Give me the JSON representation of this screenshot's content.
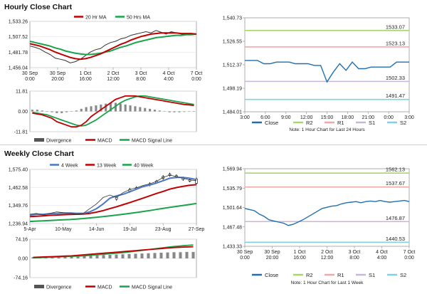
{
  "hourly": {
    "title": "Hourly Close Chart",
    "price_chart": {
      "type": "line",
      "legend": [
        {
          "name": "20 Hr MA",
          "color": "#c00000"
        },
        {
          "name": "50 Hrs MA",
          "color": "#1aa34a"
        }
      ],
      "y_ticks": [
        "1,533.26",
        "1,507.52",
        "1,481.78",
        "1,456.04"
      ],
      "ylim": [
        1456.04,
        1533.26
      ],
      "x_ticks": [
        [
          "30 Sep",
          "0:00"
        ],
        [
          "30 Sep",
          "20:00"
        ],
        [
          "1 Oct",
          "16:00"
        ],
        [
          "2 Oct",
          "12:00"
        ],
        [
          "3 Oct",
          "8:00"
        ],
        [
          "4 Oct",
          "4:00"
        ],
        [
          "7 Oct",
          "0:00"
        ]
      ],
      "price": [
        1492,
        1490,
        1487,
        1482,
        1478,
        1472,
        1470,
        1468,
        1464,
        1466,
        1470,
        1476,
        1482,
        1486,
        1488,
        1494,
        1498,
        1500,
        1504,
        1506,
        1510,
        1512,
        1514,
        1516,
        1514,
        1518,
        1515,
        1512,
        1516,
        1514,
        1512,
        1511,
        1513,
        1512
      ],
      "ma20": [
        1496,
        1494,
        1492,
        1489,
        1486,
        1482,
        1479,
        1476,
        1473,
        1471,
        1470,
        1471,
        1473,
        1476,
        1479,
        1483,
        1487,
        1491,
        1495,
        1498,
        1502,
        1505,
        1508,
        1510,
        1512,
        1513,
        1514,
        1514,
        1514,
        1514,
        1513,
        1513,
        1513,
        1512
      ],
      "ma50": [
        1500,
        1498,
        1496,
        1494,
        1492,
        1489,
        1487,
        1484,
        1482,
        1480,
        1479,
        1478,
        1478,
        1479,
        1480,
        1482,
        1484,
        1487,
        1490,
        1492,
        1495,
        1498,
        1500,
        1502,
        1504,
        1506,
        1507,
        1508,
        1509,
        1510,
        1510,
        1511,
        1511,
        1512
      ]
    },
    "macd_chart": {
      "type": "bar",
      "y_ticks": [
        "11.81",
        "0.00",
        "-11.81"
      ],
      "ylim": [
        -11.81,
        11.81
      ],
      "divergence": [
        1,
        1,
        0.5,
        0,
        -0.5,
        -1,
        -1,
        -0.5,
        0,
        0.5,
        1.5,
        2.5,
        3,
        3.5,
        4,
        4.5,
        5,
        5,
        4.5,
        4,
        3.5,
        3,
        2.5,
        2,
        1.5,
        1,
        0.5,
        0,
        -0.5,
        -0.5,
        -0.5,
        -0.3,
        -0.2,
        -0.1
      ],
      "macd": [
        -1,
        -1.5,
        -2,
        -3,
        -4,
        -6,
        -7,
        -8,
        -9,
        -9,
        -8,
        -6,
        -3,
        -1,
        1,
        3,
        5,
        7,
        8,
        9,
        9,
        9,
        8.5,
        8,
        7.5,
        7,
        6.5,
        6,
        5.5,
        5,
        4.5,
        4,
        3.8,
        3.5
      ],
      "signal": [
        -0.5,
        -1,
        -1.5,
        -2,
        -3,
        -4,
        -5,
        -6,
        -7,
        -8,
        -8.5,
        -8,
        -6.5,
        -5,
        -3,
        -1,
        1,
        3,
        5,
        6.5,
        7.5,
        8.5,
        9,
        9,
        8.5,
        8,
        7.5,
        7,
        6.5,
        6,
        5.5,
        5,
        4.5,
        4
      ],
      "legend": [
        {
          "name": "Divergence",
          "color": "#555555"
        },
        {
          "name": "MACD",
          "color": "#c00000"
        },
        {
          "name": "MACD Signal Line",
          "color": "#1aa34a"
        }
      ]
    },
    "pivot_chart": {
      "type": "line",
      "y_ticks": [
        "1,540.73",
        "1,526.55",
        "1,512.37",
        "1,498.19",
        "1,484.01"
      ],
      "ylim": [
        1484.01,
        1540.73
      ],
      "x_ticks": [
        "3:00",
        "6:00",
        "9:00",
        "12:00",
        "15:00",
        "18:00",
        "21:00",
        "0:00",
        "3:00"
      ],
      "close": [
        1515,
        1515,
        1515,
        1513,
        1513,
        1514,
        1514,
        1514,
        1513,
        1513,
        1513,
        1512,
        1512,
        1502,
        1508,
        1513,
        1509,
        1514,
        1510,
        1510,
        1511,
        1511,
        1511,
        1511,
        1514,
        1514,
        1514
      ],
      "levels": [
        {
          "name": "R2",
          "value": 1533.07,
          "label": "1533.07",
          "color": "#a8d66a"
        },
        {
          "name": "R1",
          "value": 1523.13,
          "label": "1523.13",
          "color": "#f2a7a7"
        },
        {
          "name": "S1",
          "value": 1502.33,
          "label": "1502.33",
          "color": "#c9b5d9"
        },
        {
          "name": "S2",
          "value": 1491.47,
          "label": "1491.47",
          "color": "#7fd3e0"
        }
      ],
      "legend": [
        {
          "name": "Close",
          "color": "#1f6fb0"
        },
        {
          "name": "R2",
          "color": "#a8d66a"
        },
        {
          "name": "R1",
          "color": "#f2a7a7"
        },
        {
          "name": "S1",
          "color": "#c9b5d9"
        },
        {
          "name": "S2",
          "color": "#7fd3e0"
        }
      ],
      "note": "Note: 1 Hour Chart for Last 24 Hours"
    }
  },
  "weekly": {
    "title": "Weekly Close Chart",
    "price_chart": {
      "type": "line",
      "legend": [
        {
          "name": "4 Week",
          "color": "#4a78c2"
        },
        {
          "name": "13 Week",
          "color": "#c00000"
        },
        {
          "name": "40 Week",
          "color": "#1aa34a"
        }
      ],
      "y_ticks": [
        "1,575.40",
        "1,462.58",
        "1,349.76",
        "1,236.94"
      ],
      "ylim": [
        1236.94,
        1575.4
      ],
      "x_ticks": [
        "5-Apr",
        "10-May",
        "14-Jun",
        "19-Jul",
        "23-Aug",
        "27-Sep"
      ],
      "price": [
        1295,
        1300,
        1290,
        1300,
        1310,
        1305,
        1302,
        1296,
        1300,
        1330,
        1360,
        1400,
        1415,
        1400,
        1430,
        1450,
        1460,
        1475,
        1485,
        1500,
        1525,
        1540,
        1530,
        1520,
        1510,
        1505
      ],
      "ma4": [
        1290,
        1295,
        1295,
        1298,
        1300,
        1302,
        1303,
        1301,
        1300,
        1310,
        1330,
        1360,
        1395,
        1410,
        1420,
        1435,
        1452,
        1468,
        1478,
        1490,
        1505,
        1520,
        1525,
        1525,
        1520,
        1512
      ],
      "ma13": [
        1280,
        1283,
        1285,
        1288,
        1290,
        1292,
        1294,
        1295,
        1296,
        1300,
        1308,
        1318,
        1330,
        1342,
        1355,
        1368,
        1382,
        1396,
        1410,
        1425,
        1438,
        1452,
        1462,
        1470,
        1476,
        1480
      ],
      "ma40": [
        1250,
        1252,
        1254,
        1256,
        1258,
        1260,
        1262,
        1265,
        1268,
        1272,
        1276,
        1280,
        1285,
        1290,
        1295,
        1300,
        1306,
        1312,
        1318,
        1325,
        1332,
        1338,
        1344,
        1350,
        1356,
        1362
      ],
      "candles": [
        {
          "i": 13,
          "lo": 1380,
          "hi": 1410
        },
        {
          "i": 15,
          "lo": 1430,
          "hi": 1460
        },
        {
          "i": 16,
          "lo": 1455,
          "hi": 1470
        },
        {
          "i": 18,
          "lo": 1470,
          "hi": 1495
        },
        {
          "i": 19,
          "lo": 1490,
          "hi": 1510
        },
        {
          "i": 20,
          "lo": 1510,
          "hi": 1540
        },
        {
          "i": 21,
          "lo": 1530,
          "hi": 1555
        },
        {
          "i": 22,
          "lo": 1520,
          "hi": 1545
        },
        {
          "i": 23,
          "lo": 1505,
          "hi": 1530
        },
        {
          "i": 24,
          "lo": 1495,
          "hi": 1520
        },
        {
          "i": 25,
          "lo": 1480,
          "hi": 1525
        }
      ]
    },
    "macd_chart": {
      "type": "bar",
      "y_ticks": [
        "74.16",
        "0.00",
        "-74.16"
      ],
      "ylim": [
        -74.16,
        74.16
      ],
      "divergence": [
        5,
        6,
        7,
        8,
        9,
        10,
        10,
        11,
        11,
        12,
        12,
        13,
        14,
        15,
        16,
        17,
        18,
        19,
        20,
        21,
        22,
        23,
        24,
        24,
        25,
        25
      ],
      "macd": [
        4,
        5,
        6,
        7,
        8,
        9,
        10,
        12,
        14,
        16,
        18,
        20,
        22,
        24,
        26,
        28,
        30,
        32,
        34,
        36,
        38,
        40,
        42,
        43,
        44,
        45
      ],
      "signal": [
        2,
        3,
        4,
        5,
        6,
        7,
        8,
        9,
        10,
        12,
        14,
        16,
        18,
        20,
        22,
        25,
        28,
        31,
        34,
        37,
        40,
        43,
        46,
        48,
        50,
        52
      ],
      "legend": [
        {
          "name": "Divergence",
          "color": "#555555"
        },
        {
          "name": "MACD",
          "color": "#c00000"
        },
        {
          "name": "MACD Signal Line",
          "color": "#1aa34a"
        }
      ]
    },
    "pivot_chart": {
      "type": "line",
      "y_ticks": [
        "1,569.94",
        "1,535.79",
        "1,501.64",
        "1,467.48",
        "1,433.33"
      ],
      "ylim": [
        1433.33,
        1569.94
      ],
      "x_ticks": [
        [
          "30 Sep",
          "0:00"
        ],
        [
          "30 Sep",
          "20:00"
        ],
        [
          "1 Oct",
          "16:00"
        ],
        [
          "2 Oct",
          "12:00"
        ],
        [
          "3 Oct",
          "8:00"
        ],
        [
          "4 Oct",
          "4:00"
        ],
        [
          "7 Oct",
          "0:00"
        ]
      ],
      "close": [
        1500,
        1498,
        1496,
        1490,
        1486,
        1480,
        1478,
        1476,
        1474,
        1470,
        1472,
        1476,
        1480,
        1485,
        1490,
        1495,
        1500,
        1502,
        1504,
        1505,
        1508,
        1510,
        1511,
        1512,
        1510,
        1512,
        1513,
        1512,
        1514,
        1512,
        1511,
        1512,
        1513,
        1514,
        1512
      ],
      "levels": [
        {
          "name": "R2",
          "value": 1562.13,
          "label": "1562.13",
          "color": "#a8d66a"
        },
        {
          "name": "R1",
          "value": 1537.67,
          "label": "1537.67",
          "color": "#f2a7a7"
        },
        {
          "name": "S1",
          "value": 1476.87,
          "label": "1476.87",
          "color": "#c9b5d9"
        },
        {
          "name": "S2",
          "value": 1440.53,
          "label": "1440.53",
          "color": "#7fd3e0"
        }
      ],
      "legend": [
        {
          "name": "Close",
          "color": "#1f6fb0"
        },
        {
          "name": "R2",
          "color": "#a8d66a"
        },
        {
          "name": "R1",
          "color": "#f2a7a7"
        },
        {
          "name": "S1",
          "color": "#c9b5d9"
        },
        {
          "name": "S2",
          "color": "#7fd3e0"
        }
      ],
      "note": "Note: 1 Hour Chart for Last 1 Week"
    }
  }
}
